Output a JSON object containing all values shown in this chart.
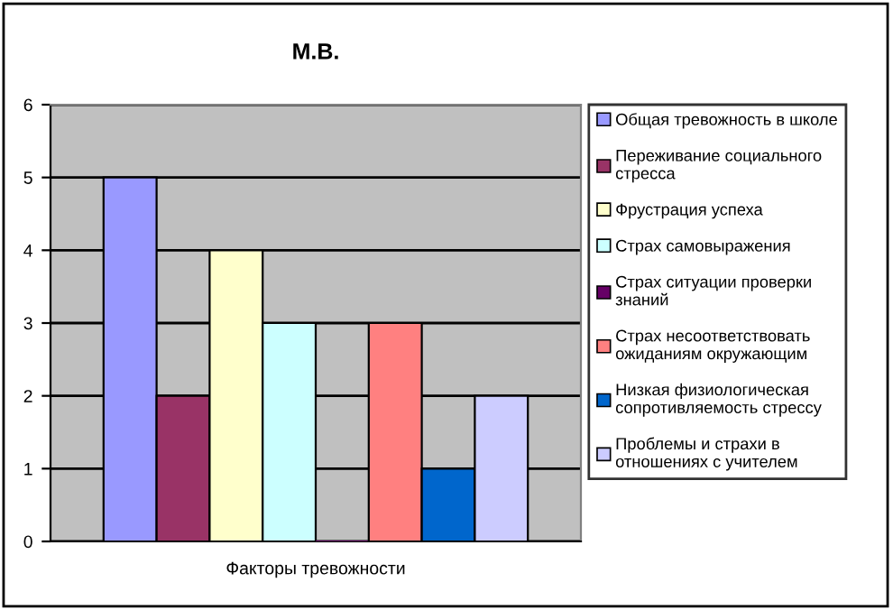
{
  "chart_data": {
    "type": "bar",
    "title": "М.В.",
    "categories": [
      "Факторы тревожности"
    ],
    "series": [
      {
        "name": "Общая тревожность в школе",
        "color": "#9999ff",
        "values": [
          5
        ]
      },
      {
        "name": "Переживание социального стресса",
        "color": "#993366",
        "values": [
          2
        ]
      },
      {
        "name": "Фрустрация успеха",
        "color": "#ffffcc",
        "values": [
          4
        ]
      },
      {
        "name": "Страх самовыражения",
        "color": "#ccffff",
        "values": [
          3
        ]
      },
      {
        "name": "Страх ситуации проверки знаний",
        "color": "#660066",
        "values": [
          0
        ]
      },
      {
        "name": "Страх несоответствовать ожиданиям окружающим",
        "color": "#ff8080",
        "values": [
          3
        ]
      },
      {
        "name": "Низкая физиологическая сопротивляемость стрессу",
        "color": "#0066cc",
        "values": [
          1
        ]
      },
      {
        "name": "Проблемы и страхи в отношениях с учителем",
        "color": "#ccccff",
        "values": [
          2
        ]
      }
    ],
    "ylim": [
      0,
      6
    ],
    "yticks": [
      0,
      1,
      2,
      3,
      4,
      5,
      6
    ],
    "grid": "y",
    "legend": "right"
  }
}
